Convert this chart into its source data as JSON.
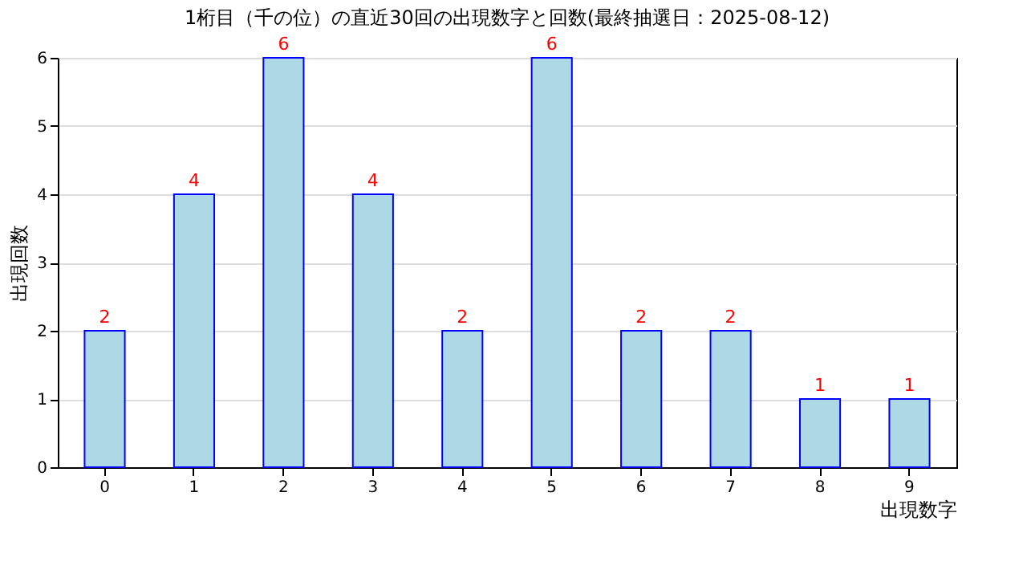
{
  "chart_data": {
    "type": "bar",
    "title": "1桁目（千の位）の直近30回の出現数字と回数(最終抽選日：2025-08-12)",
    "xlabel": "出現数字",
    "ylabel": "出現回数",
    "categories": [
      "0",
      "1",
      "2",
      "3",
      "4",
      "5",
      "6",
      "7",
      "8",
      "9"
    ],
    "values": [
      2,
      4,
      6,
      4,
      2,
      6,
      2,
      2,
      1,
      1
    ],
    "color": "#add8e6",
    "ylim": [
      0,
      6
    ],
    "yticks": [
      0,
      1,
      2,
      3,
      4,
      5,
      6
    ],
    "grid": "y",
    "data_labels": true
  }
}
